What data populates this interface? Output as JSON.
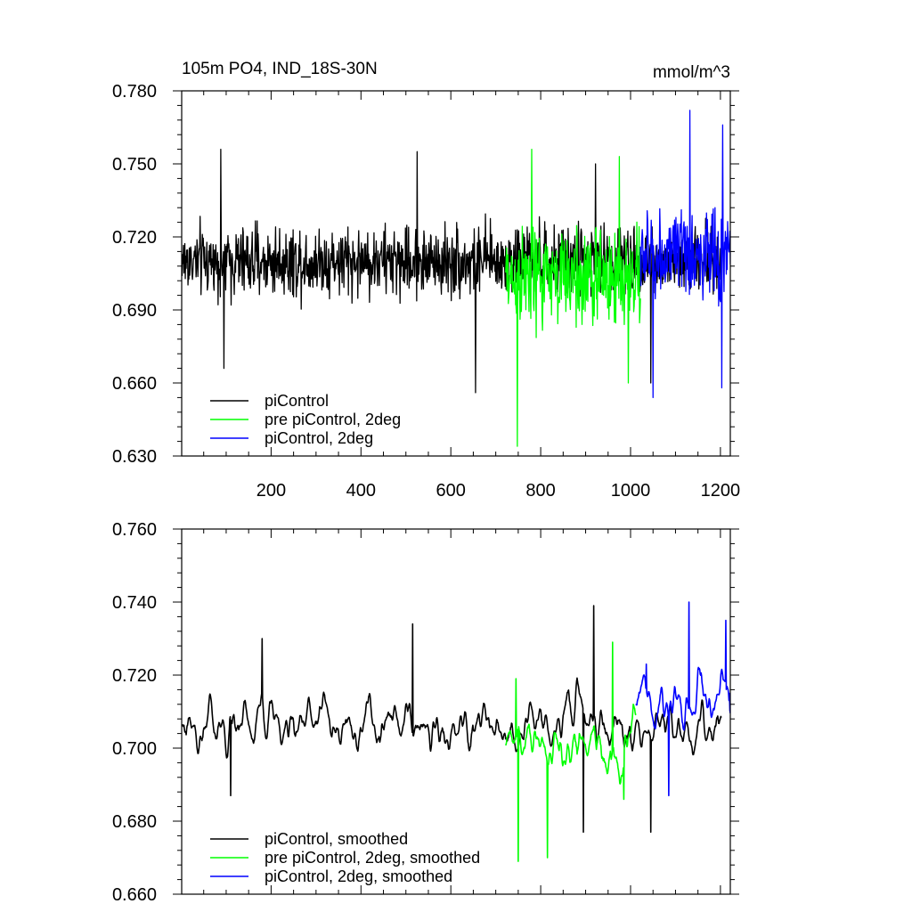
{
  "chart_data": [
    {
      "type": "line",
      "title": "105m PO4, IND_18S-30N",
      "units": "mmol/m^3",
      "xlim": [
        1,
        1222
      ],
      "ylim": [
        0.63,
        0.78
      ],
      "xticks": [
        200,
        400,
        600,
        800,
        1000,
        1200
      ],
      "xtick_labels": [
        "200",
        "400",
        "600",
        "800",
        "1000",
        "1200"
      ],
      "yticks": [
        0.63,
        0.66,
        0.69,
        0.72,
        0.75,
        0.78
      ],
      "ytick_labels": [
        "0.630",
        "0.660",
        "0.690",
        "0.720",
        "0.750",
        "0.780"
      ],
      "legend_position": "bottom-left",
      "series": [
        {
          "name": "piControl",
          "color": "#000000",
          "x_start": 1,
          "x_end": 1202,
          "mean": 0.71,
          "amplitude": 0.014,
          "extremes": [
            [
              88,
              0.756
            ],
            [
              95,
              0.666
            ],
            [
              525,
              0.755
            ],
            [
              655,
              0.656
            ],
            [
              922,
              0.75
            ],
            [
              1045,
              0.66
            ]
          ]
        },
        {
          "name": "pre piControl, 2deg",
          "color": "#00ff00",
          "x_start": 722,
          "x_end": 1022,
          "mean": 0.703,
          "amplitude": 0.02,
          "extremes": [
            [
              748,
              0.634
            ],
            [
              780,
              0.756
            ],
            [
              975,
              0.753
            ],
            [
              995,
              0.66
            ]
          ]
        },
        {
          "name": "piControl, 2deg",
          "color": "#0000ff",
          "x_start": 1022,
          "x_end": 1222,
          "mean": 0.712,
          "amplitude": 0.018,
          "extremes": [
            [
              1050,
              0.654
            ],
            [
              1132,
              0.772
            ],
            [
              1205,
              0.766
            ],
            [
              1203,
              0.658
            ]
          ]
        }
      ]
    },
    {
      "type": "line",
      "xlim": [
        1,
        1222
      ],
      "ylim": [
        0.66,
        0.76
      ],
      "xticks": [
        200,
        400,
        600,
        800,
        1000,
        1200
      ],
      "yticks": [
        0.66,
        0.68,
        0.7,
        0.72,
        0.74,
        0.76
      ],
      "ytick_labels": [
        "0.660",
        "0.680",
        "0.700",
        "0.720",
        "0.740",
        "0.760"
      ],
      "legend_position": "bottom-left",
      "series": [
        {
          "name": "piControl, smoothed",
          "color": "#000000",
          "x_start": 1,
          "x_end": 1202,
          "mean": 0.706,
          "amplitude": 0.009,
          "extremes": [
            [
              110,
              0.687
            ],
            [
              180,
              0.73
            ],
            [
              515,
              0.734
            ],
            [
              895,
              0.677
            ],
            [
              918,
              0.739
            ],
            [
              1045,
              0.677
            ]
          ]
        },
        {
          "name": "pre piControl, 2deg, smoothed",
          "color": "#00ff00",
          "x_start": 722,
          "x_end": 1012,
          "mean": 0.7,
          "amplitude": 0.011,
          "extremes": [
            [
              745,
              0.719
            ],
            [
              750,
              0.669
            ],
            [
              815,
              0.67
            ],
            [
              960,
              0.729
            ],
            [
              985,
              0.686
            ]
          ]
        },
        {
          "name": "piControl, 2deg, smoothed",
          "color": "#0000ff",
          "x_start": 1012,
          "x_end": 1222,
          "mean": 0.712,
          "amplitude": 0.01,
          "extremes": [
            [
              1035,
              0.723
            ],
            [
              1085,
              0.687
            ],
            [
              1130,
              0.74
            ],
            [
              1212,
              0.735
            ],
            [
              1220,
              0.715
            ]
          ]
        }
      ]
    }
  ]
}
